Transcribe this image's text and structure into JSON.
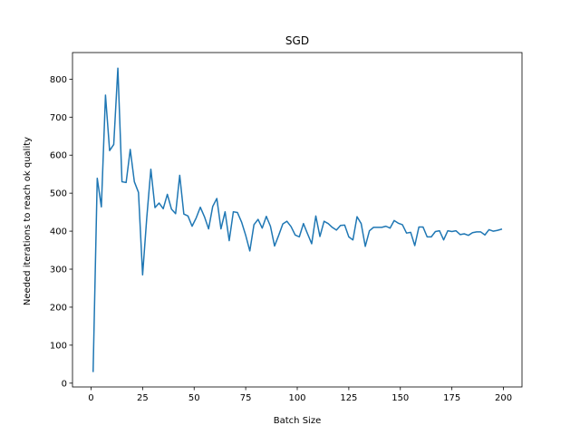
{
  "chart_data": {
    "type": "line",
    "title": "SGD",
    "xlabel": "Batch Size",
    "ylabel": "Needed iterations to reach ok quality",
    "xlim": [
      -9,
      209
    ],
    "ylim": [
      -10,
      870
    ],
    "xticks": [
      0,
      25,
      50,
      75,
      100,
      125,
      150,
      175,
      200
    ],
    "yticks": [
      0,
      100,
      200,
      300,
      400,
      500,
      600,
      700,
      800
    ],
    "grid": false,
    "series": [
      {
        "color": "#1f77b4",
        "x": [
          1,
          3,
          5,
          7,
          9,
          11,
          13,
          15,
          17,
          19,
          21,
          23,
          25,
          27,
          29,
          31,
          33,
          35,
          37,
          39,
          41,
          43,
          45,
          47,
          49,
          51,
          53,
          55,
          57,
          59,
          61,
          63,
          65,
          67,
          69,
          71,
          73,
          75,
          77,
          79,
          81,
          83,
          85,
          87,
          89,
          91,
          93,
          95,
          97,
          99,
          101,
          103,
          105,
          107,
          109,
          111,
          113,
          115,
          117,
          119,
          121,
          123,
          125,
          127,
          129,
          131,
          133,
          135,
          137,
          139,
          141,
          143,
          145,
          147,
          149,
          151,
          153,
          155,
          157,
          159,
          161,
          163,
          165,
          167,
          169,
          171,
          173,
          175,
          177,
          179,
          181,
          183,
          185,
          187,
          189,
          191,
          193,
          195,
          197,
          199
        ],
        "y": [
          31,
          539,
          464,
          758,
          612,
          628,
          829,
          530,
          528,
          615,
          530,
          502,
          285,
          434,
          563,
          462,
          474,
          459,
          497,
          458,
          446,
          547,
          445,
          440,
          413,
          435,
          463,
          438,
          406,
          465,
          486,
          406,
          451,
          375,
          451,
          449,
          424,
          389,
          348,
          417,
          431,
          408,
          439,
          413,
          361,
          389,
          419,
          426,
          412,
          390,
          385,
          420,
          393,
          367,
          440,
          386,
          426,
          420,
          410,
          403,
          415,
          416,
          385,
          377,
          438,
          420,
          360,
          401,
          410,
          410,
          410,
          413,
          408,
          428,
          421,
          417,
          395,
          397,
          362,
          411,
          411,
          385,
          385,
          399,
          401,
          377,
          401,
          399,
          401,
          391,
          393,
          389,
          396,
          398,
          398,
          390,
          404,
          400,
          402,
          405
        ]
      }
    ]
  }
}
